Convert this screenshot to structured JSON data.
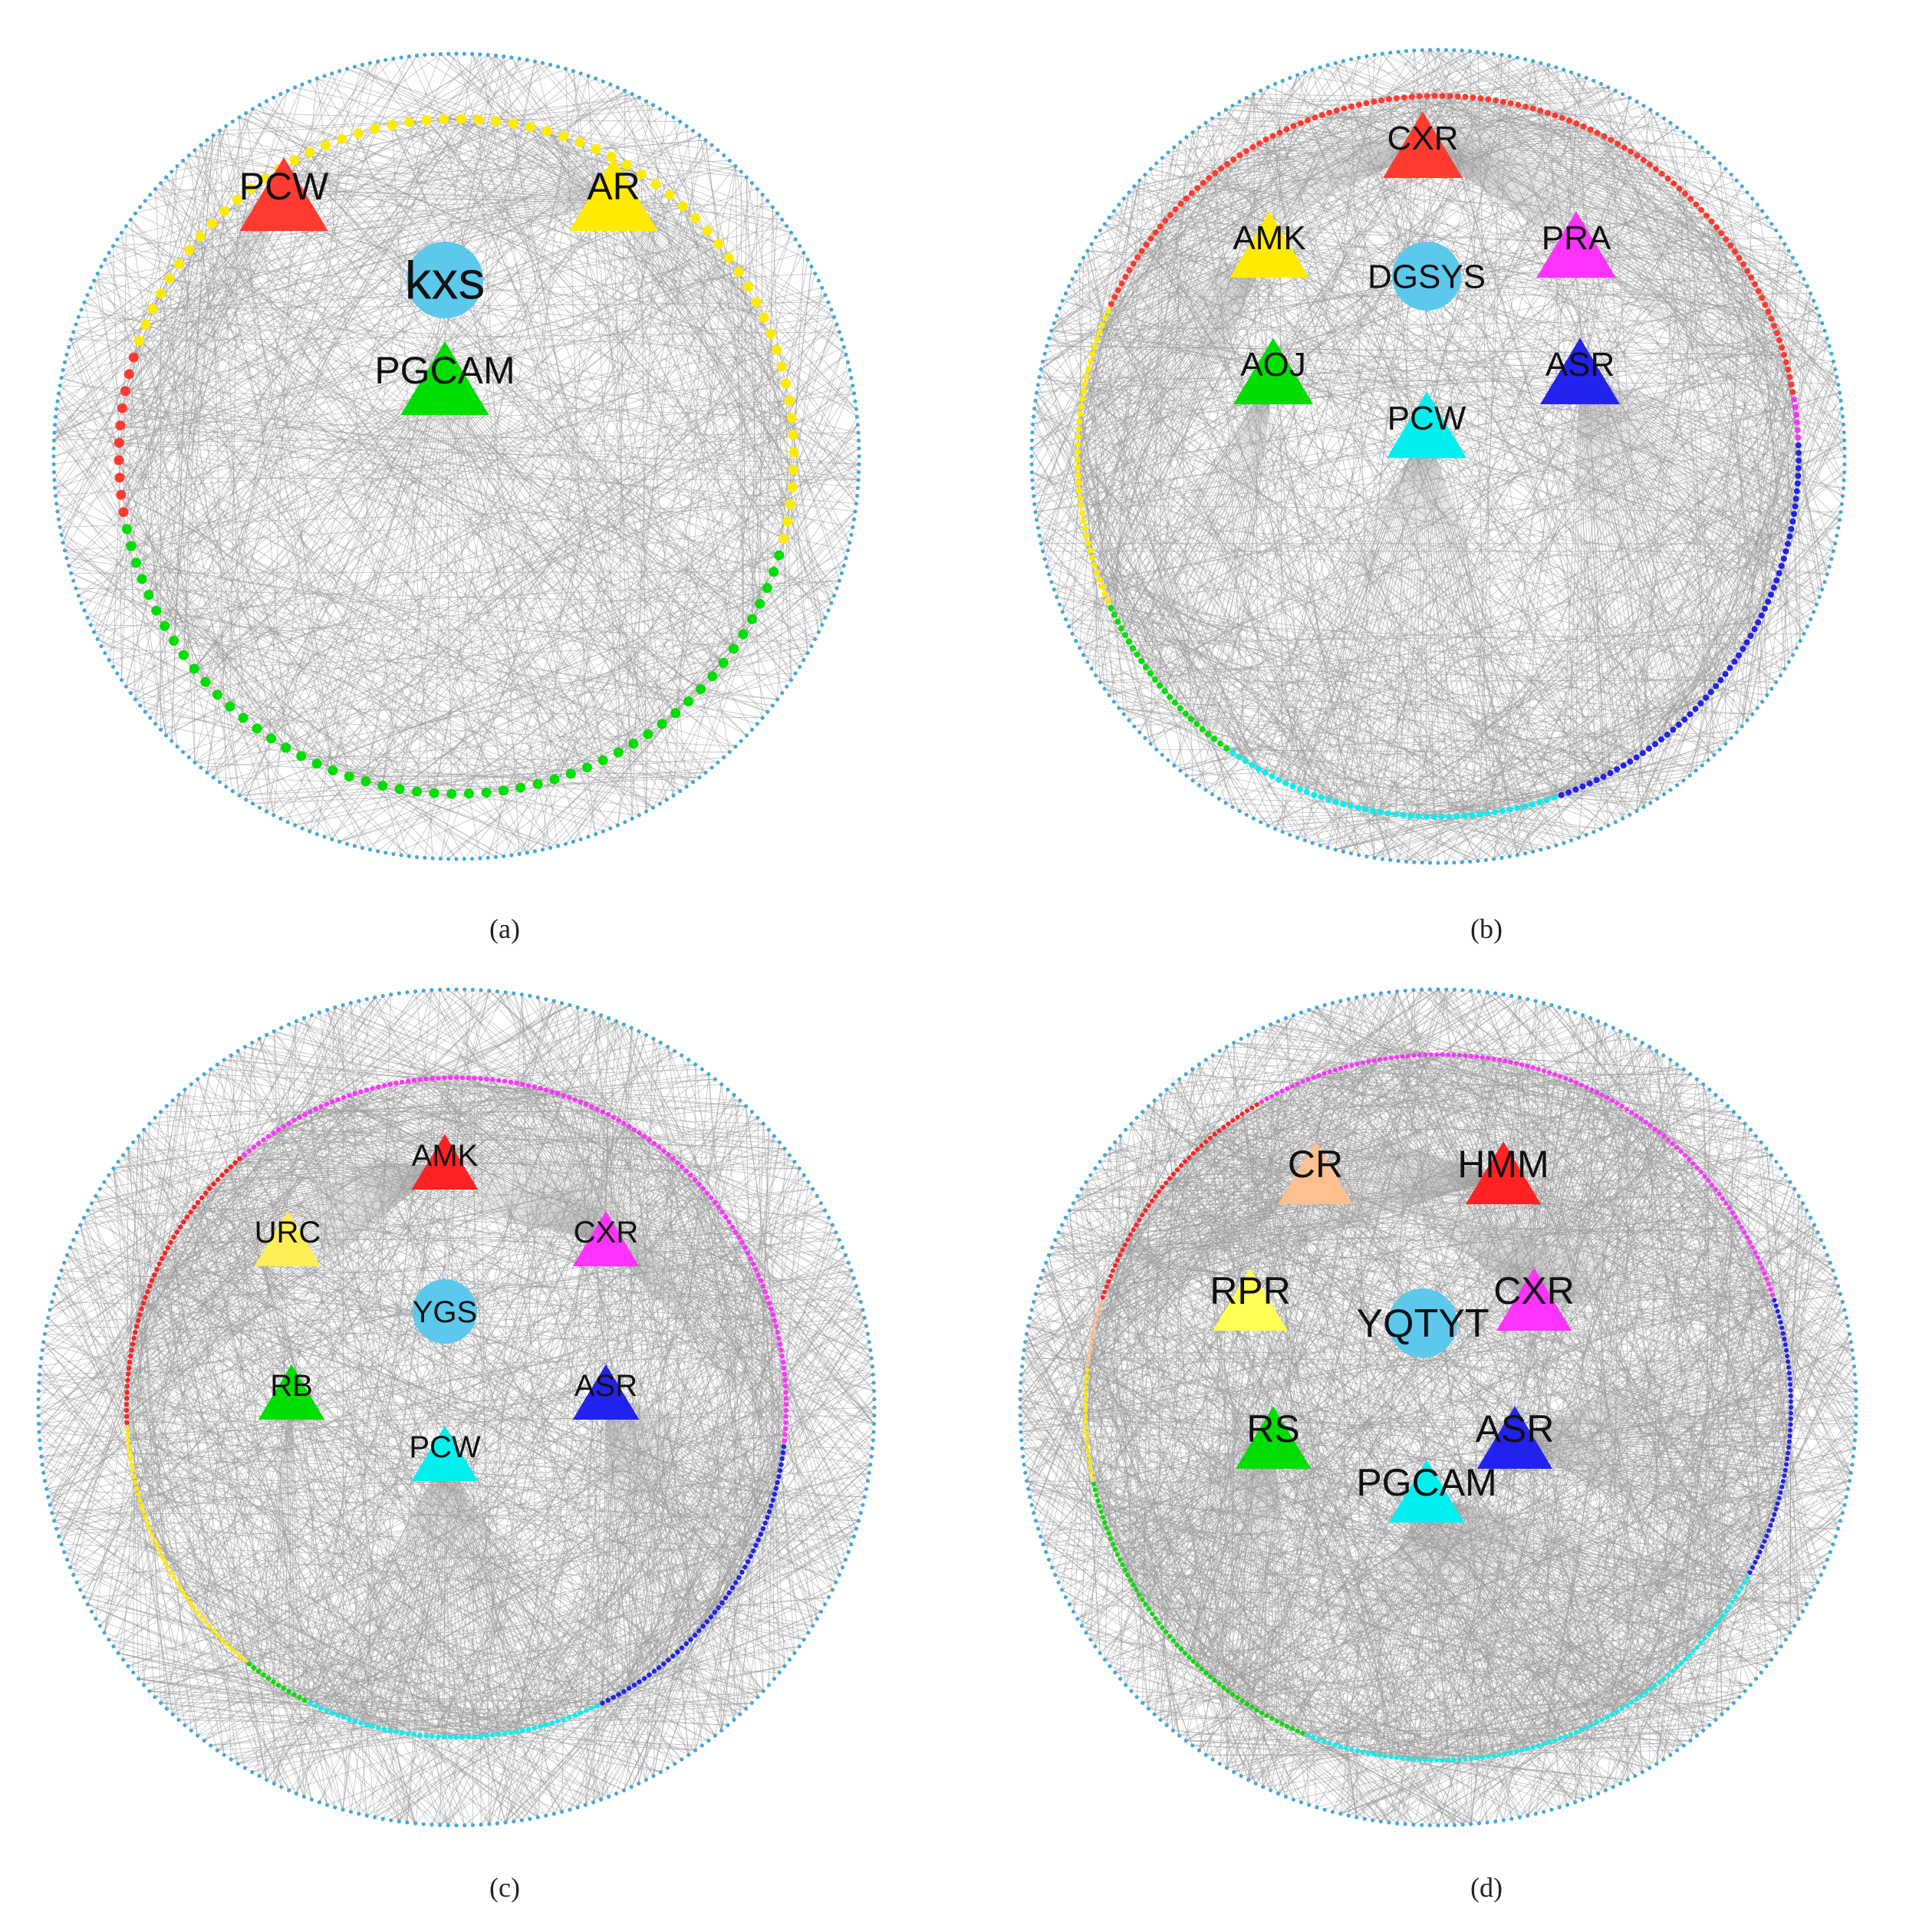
{
  "panels": [
    {
      "caption": "(a)",
      "center_label": "kxs",
      "herbs": [
        {
          "label": "PCW",
          "color": "#ff3b30"
        },
        {
          "label": "AR",
          "color": "#ffeb00"
        },
        {
          "label": "PGCAM",
          "color": "#00dd00"
        }
      ],
      "ring_groups": [
        {
          "color": "#ffeb00",
          "count": 60
        },
        {
          "color": "#00dd00",
          "count": 52
        },
        {
          "color": "#ff3b30",
          "count": 10
        }
      ]
    },
    {
      "caption": "(b)",
      "center_label": "DGSYS",
      "herbs": [
        {
          "label": "CXR",
          "color": "#ff3b30"
        },
        {
          "label": "AMK",
          "color": "#ffeb00"
        },
        {
          "label": "PRA",
          "color": "#ff33ff"
        },
        {
          "label": "AOJ",
          "color": "#00dd00"
        },
        {
          "label": "ASR",
          "color": "#2222ee"
        },
        {
          "label": "PCW",
          "color": "#00f0f0"
        }
      ],
      "ring_groups": [
        {
          "color": "#ff3b30",
          "count": 120
        },
        {
          "color": "#ff33ff",
          "count": 6
        },
        {
          "color": "#2222ee",
          "count": 60
        },
        {
          "color": "#00f0f0",
          "count": 45
        },
        {
          "color": "#00dd00",
          "count": 25
        },
        {
          "color": "#ffeb00",
          "count": 40
        }
      ]
    },
    {
      "caption": "(c)",
      "center_label": "YGS",
      "herbs": [
        {
          "label": "AMK",
          "color": "#ff2222"
        },
        {
          "label": "URC",
          "color": "#ffee55"
        },
        {
          "label": "CXR",
          "color": "#ff33ff"
        },
        {
          "label": "RB",
          "color": "#00dd00"
        },
        {
          "label": "ASR",
          "color": "#2222ee"
        },
        {
          "label": "PCW",
          "color": "#00f0f0"
        }
      ],
      "ring_groups": [
        {
          "color": "#ff33ff",
          "count": 130
        },
        {
          "color": "#2222ee",
          "count": 55
        },
        {
          "color": "#00f0f0",
          "count": 50
        },
        {
          "color": "#00dd00",
          "count": 12
        },
        {
          "color": "#ffeb00",
          "count": 45
        },
        {
          "color": "#ff2222",
          "count": 50
        }
      ]
    },
    {
      "caption": "(d)",
      "center_label": "YQTYT",
      "herbs": [
        {
          "label": "CR",
          "color": "#ffc090"
        },
        {
          "label": "HMM",
          "color": "#ff2222"
        },
        {
          "label": "RPR",
          "color": "#ffff55"
        },
        {
          "label": "CXR",
          "color": "#ff33ff"
        },
        {
          "label": "RS",
          "color": "#00dd00"
        },
        {
          "label": "ASR",
          "color": "#2222ee"
        },
        {
          "label": "PGCAM",
          "color": "#00f0f0"
        }
      ],
      "ring_groups": [
        {
          "color": "#ff33ff",
          "count": 110
        },
        {
          "color": "#2222ee",
          "count": 50
        },
        {
          "color": "#00f0f0",
          "count": 90
        },
        {
          "color": "#00dd00",
          "count": 60
        },
        {
          "color": "#ffeb00",
          "count": 20
        },
        {
          "color": "#ffc090",
          "count": 12
        },
        {
          "color": "#ff2222",
          "count": 45
        }
      ]
    }
  ],
  "style": {
    "edge_color": "#999999",
    "target_ring_color": "#4aa8d6",
    "center_node_color": "#5bc8ec"
  }
}
